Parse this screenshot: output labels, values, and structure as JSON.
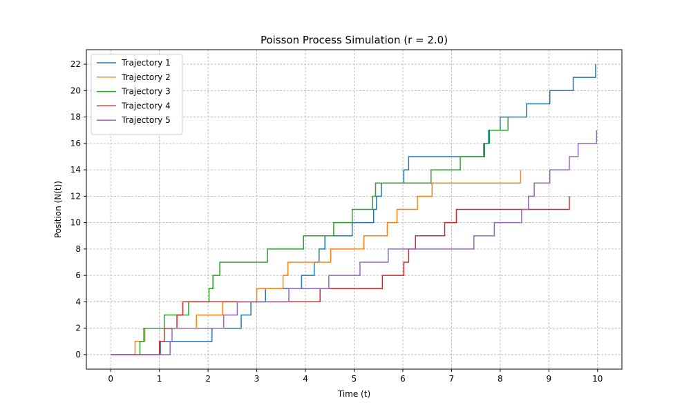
{
  "chart_data": {
    "type": "line",
    "title": "Poisson Process Simulation (r = 2.0)",
    "xlabel": "Time (t)",
    "ylabel": "Position (N(t))",
    "xlim": [
      -0.5,
      10.5
    ],
    "ylim": [
      -1.1,
      23.1
    ],
    "xticks": [
      0,
      1,
      2,
      3,
      4,
      5,
      6,
      7,
      8,
      9,
      10
    ],
    "yticks": [
      0,
      2,
      4,
      6,
      8,
      10,
      12,
      14,
      16,
      18,
      20,
      22
    ],
    "grid": true,
    "legend_position": "upper-left",
    "series": [
      {
        "name": "Trajectory 1",
        "color": "#1f77b4",
        "jump_times": [
          1.02,
          2.08,
          2.68,
          2.88,
          3.18,
          3.92,
          4.18,
          4.28,
          4.4,
          4.96,
          5.4,
          5.46,
          5.56,
          6.02,
          6.12,
          7.68,
          7.76,
          8.0,
          8.54,
          9.02,
          9.5,
          9.96
        ]
      },
      {
        "name": "Trajectory 2",
        "color": "#ff7f0e",
        "jump_times": [
          0.5,
          0.7,
          1.76,
          2.3,
          3.0,
          3.54,
          3.64,
          4.52,
          5.2,
          5.68,
          5.88,
          6.3,
          6.6,
          8.42
        ]
      },
      {
        "name": "Trajectory 3",
        "color": "#2ca02c",
        "jump_times": [
          0.6,
          0.68,
          1.1,
          1.6,
          2.02,
          2.1,
          2.24,
          3.22,
          3.96,
          4.58,
          4.96,
          5.38,
          5.44,
          6.58,
          7.18,
          7.66,
          7.78,
          8.16
        ]
      },
      {
        "name": "Trajectory 4",
        "color": "#d62728",
        "jump_times": [
          1.0,
          1.1,
          1.36,
          1.48,
          4.3,
          5.58,
          6.02,
          6.12,
          6.26,
          6.86,
          7.1,
          9.42
        ]
      },
      {
        "name": "Trajectory 5",
        "color": "#9467bd",
        "jump_times": [
          1.22,
          1.26,
          2.32,
          2.6,
          3.66,
          4.48,
          5.12,
          5.7,
          7.46,
          7.88,
          8.44,
          8.58,
          8.7,
          9.02,
          9.42,
          9.6,
          9.98
        ]
      }
    ]
  }
}
